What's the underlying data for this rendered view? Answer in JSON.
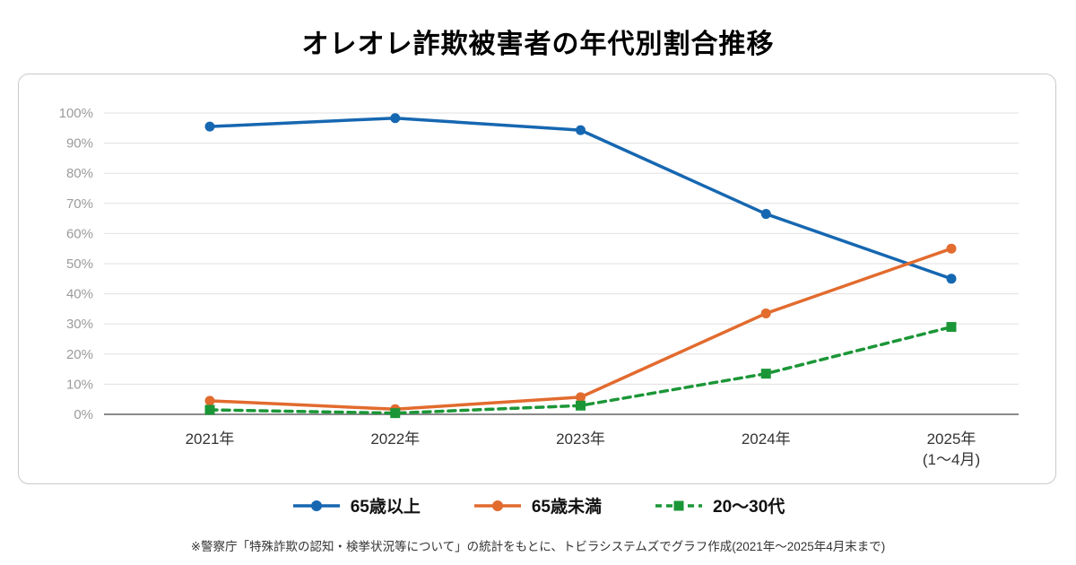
{
  "title": "オレオレ詐欺被害者の年代別割合推移",
  "footer_note": "※警察庁「特殊詐欺の認知・検挙状況等について」の統計をもとに、トビラシステムズでグラフ作成(2021年〜2025年4月末まで)",
  "chart_data": {
    "type": "line",
    "categories": [
      "2021年",
      "2022年",
      "2023年",
      "2024年",
      "2025年\n(1〜4月)"
    ],
    "series": [
      {
        "name": "65歳以上",
        "color": "#1667b1",
        "marker": "circle",
        "dash": false,
        "values": [
          95.5,
          98.3,
          94.3,
          66.5,
          45.0
        ]
      },
      {
        "name": "65歳未満",
        "color": "#e26b2e",
        "marker": "circle",
        "dash": false,
        "values": [
          4.5,
          1.7,
          5.7,
          33.5,
          55.0
        ]
      },
      {
        "name": "20〜30代",
        "color": "#1b9637",
        "marker": "square",
        "dash": true,
        "values": [
          1.5,
          0.4,
          2.9,
          13.5,
          29.0
        ]
      }
    ],
    "ylabel_ticks": [
      "0%",
      "10%",
      "20%",
      "30%",
      "40%",
      "50%",
      "60%",
      "70%",
      "80%",
      "90%",
      "100%"
    ],
    "ylim": [
      0,
      100
    ],
    "grid": true,
    "legend_position": "bottom"
  }
}
